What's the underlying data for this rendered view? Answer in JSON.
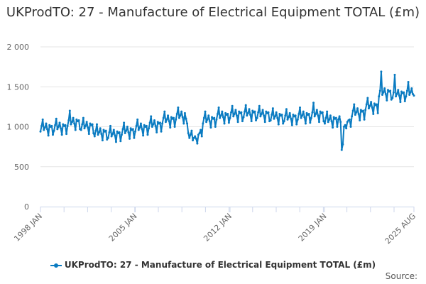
{
  "chart_data": {
    "type": "line",
    "title": "UKProdTO: 27 - Manufacture of Electrical Equipment TOTAL (£m)",
    "xlabel": "",
    "ylabel": "",
    "ylim": [
      0,
      2000
    ],
    "y_ticks": [
      "0",
      "500",
      "1 000",
      "1 500",
      "2 000"
    ],
    "y_tick_values": [
      0,
      500,
      1000,
      1500,
      2000
    ],
    "x_start": "1998-01",
    "x_end": "2025-08",
    "x_tick_labels": [
      {
        "label": "1998 JAN",
        "index": 0
      },
      {
        "label": "2005 JAN",
        "index": 84
      },
      {
        "label": "2012 JAN",
        "index": 168
      },
      {
        "label": "2019 JAN",
        "index": 252
      },
      {
        "label": "2025 AUG",
        "index": 331
      }
    ],
    "grid": true,
    "legend": "bottom-center",
    "series": [
      {
        "name": "UKProdTO: 27 - Manufacture of Electrical Equipment TOTAL (£m)",
        "color": "#0a7bc1",
        "values": [
          940,
          1010,
          1090,
          960,
          990,
          1040,
          970,
          890,
          1020,
          1000,
          1010,
          900,
          950,
          1020,
          1100,
          970,
          1000,
          1050,
          980,
          900,
          1030,
          1010,
          1020,
          910,
          1010,
          1080,
          1200,
          1030,
          1060,
          1110,
          1040,
          960,
          1090,
          1070,
          1080,
          970,
          960,
          1030,
          1110,
          980,
          1010,
          1060,
          990,
          910,
          1040,
          1020,
          1030,
          920,
          880,
          950,
          1030,
          900,
          930,
          980,
          910,
          830,
          960,
          940,
          950,
          840,
          860,
          930,
          1010,
          880,
          910,
          960,
          890,
          810,
          940,
          920,
          930,
          820,
          900,
          970,
          1050,
          920,
          950,
          1000,
          930,
          850,
          980,
          960,
          970,
          860,
          940,
          1010,
          1090,
          960,
          990,
          1040,
          970,
          890,
          1020,
          1000,
          1010,
          900,
          980,
          1050,
          1130,
          1000,
          1030,
          1080,
          1010,
          930,
          1060,
          1040,
          1050,
          940,
          1040,
          1110,
          1190,
          1060,
          1090,
          1140,
          1070,
          990,
          1120,
          1100,
          1110,
          1000,
          1090,
          1160,
          1240,
          1110,
          1140,
          1190,
          1120,
          1040,
          1170,
          1100,
          1040,
          920,
          860,
          900,
          950,
          830,
          860,
          880,
          850,
          790,
          900,
          920,
          960,
          880,
          1040,
          1110,
          1190,
          1060,
          1090,
          1140,
          1070,
          990,
          1120,
          1100,
          1110,
          1000,
          1090,
          1160,
          1240,
          1110,
          1140,
          1190,
          1120,
          1040,
          1170,
          1150,
          1160,
          1050,
          1110,
          1180,
          1260,
          1130,
          1160,
          1210,
          1140,
          1060,
          1190,
          1170,
          1180,
          1070,
          1120,
          1190,
          1270,
          1140,
          1170,
          1220,
          1150,
          1070,
          1200,
          1180,
          1190,
          1080,
          1110,
          1180,
          1260,
          1130,
          1160,
          1210,
          1140,
          1060,
          1190,
          1170,
          1180,
          1070,
          1080,
          1150,
          1230,
          1100,
          1130,
          1180,
          1110,
          1030,
          1160,
          1140,
          1150,
          1040,
          1070,
          1140,
          1220,
          1090,
          1120,
          1170,
          1100,
          1020,
          1150,
          1130,
          1140,
          1030,
          1090,
          1160,
          1240,
          1110,
          1140,
          1190,
          1120,
          1040,
          1170,
          1150,
          1160,
          1050,
          1110,
          1180,
          1300,
          1130,
          1160,
          1210,
          1140,
          1060,
          1190,
          1170,
          1180,
          1070,
          1040,
          1110,
          1190,
          1060,
          1090,
          1140,
          1070,
          990,
          1120,
          1100,
          1110,
          1000,
          1090,
          1130,
          1060,
          710,
          780,
          1000,
          1020,
          980,
          1060,
          1080,
          1090,
          1000,
          1130,
          1200,
          1280,
          1150,
          1180,
          1230,
          1160,
          1080,
          1210,
          1190,
          1200,
          1090,
          1210,
          1280,
          1360,
          1230,
          1260,
          1310,
          1240,
          1160,
          1290,
          1270,
          1280,
          1170,
          1380,
          1450,
          1690,
          1400,
          1430,
          1480,
          1410,
          1330,
          1460,
          1440,
          1450,
          1340,
          1360,
          1430,
          1650,
          1380,
          1410,
          1460,
          1390,
          1310,
          1440,
          1420,
          1430,
          1320,
          1380,
          1450,
          1560,
          1400,
          1430,
          1480,
          1410,
          1390
        ]
      }
    ]
  },
  "legend_label": "UKProdTO: 27 - Manufacture of Electrical Equipment TOTAL (£m)",
  "source_label": "Source:"
}
